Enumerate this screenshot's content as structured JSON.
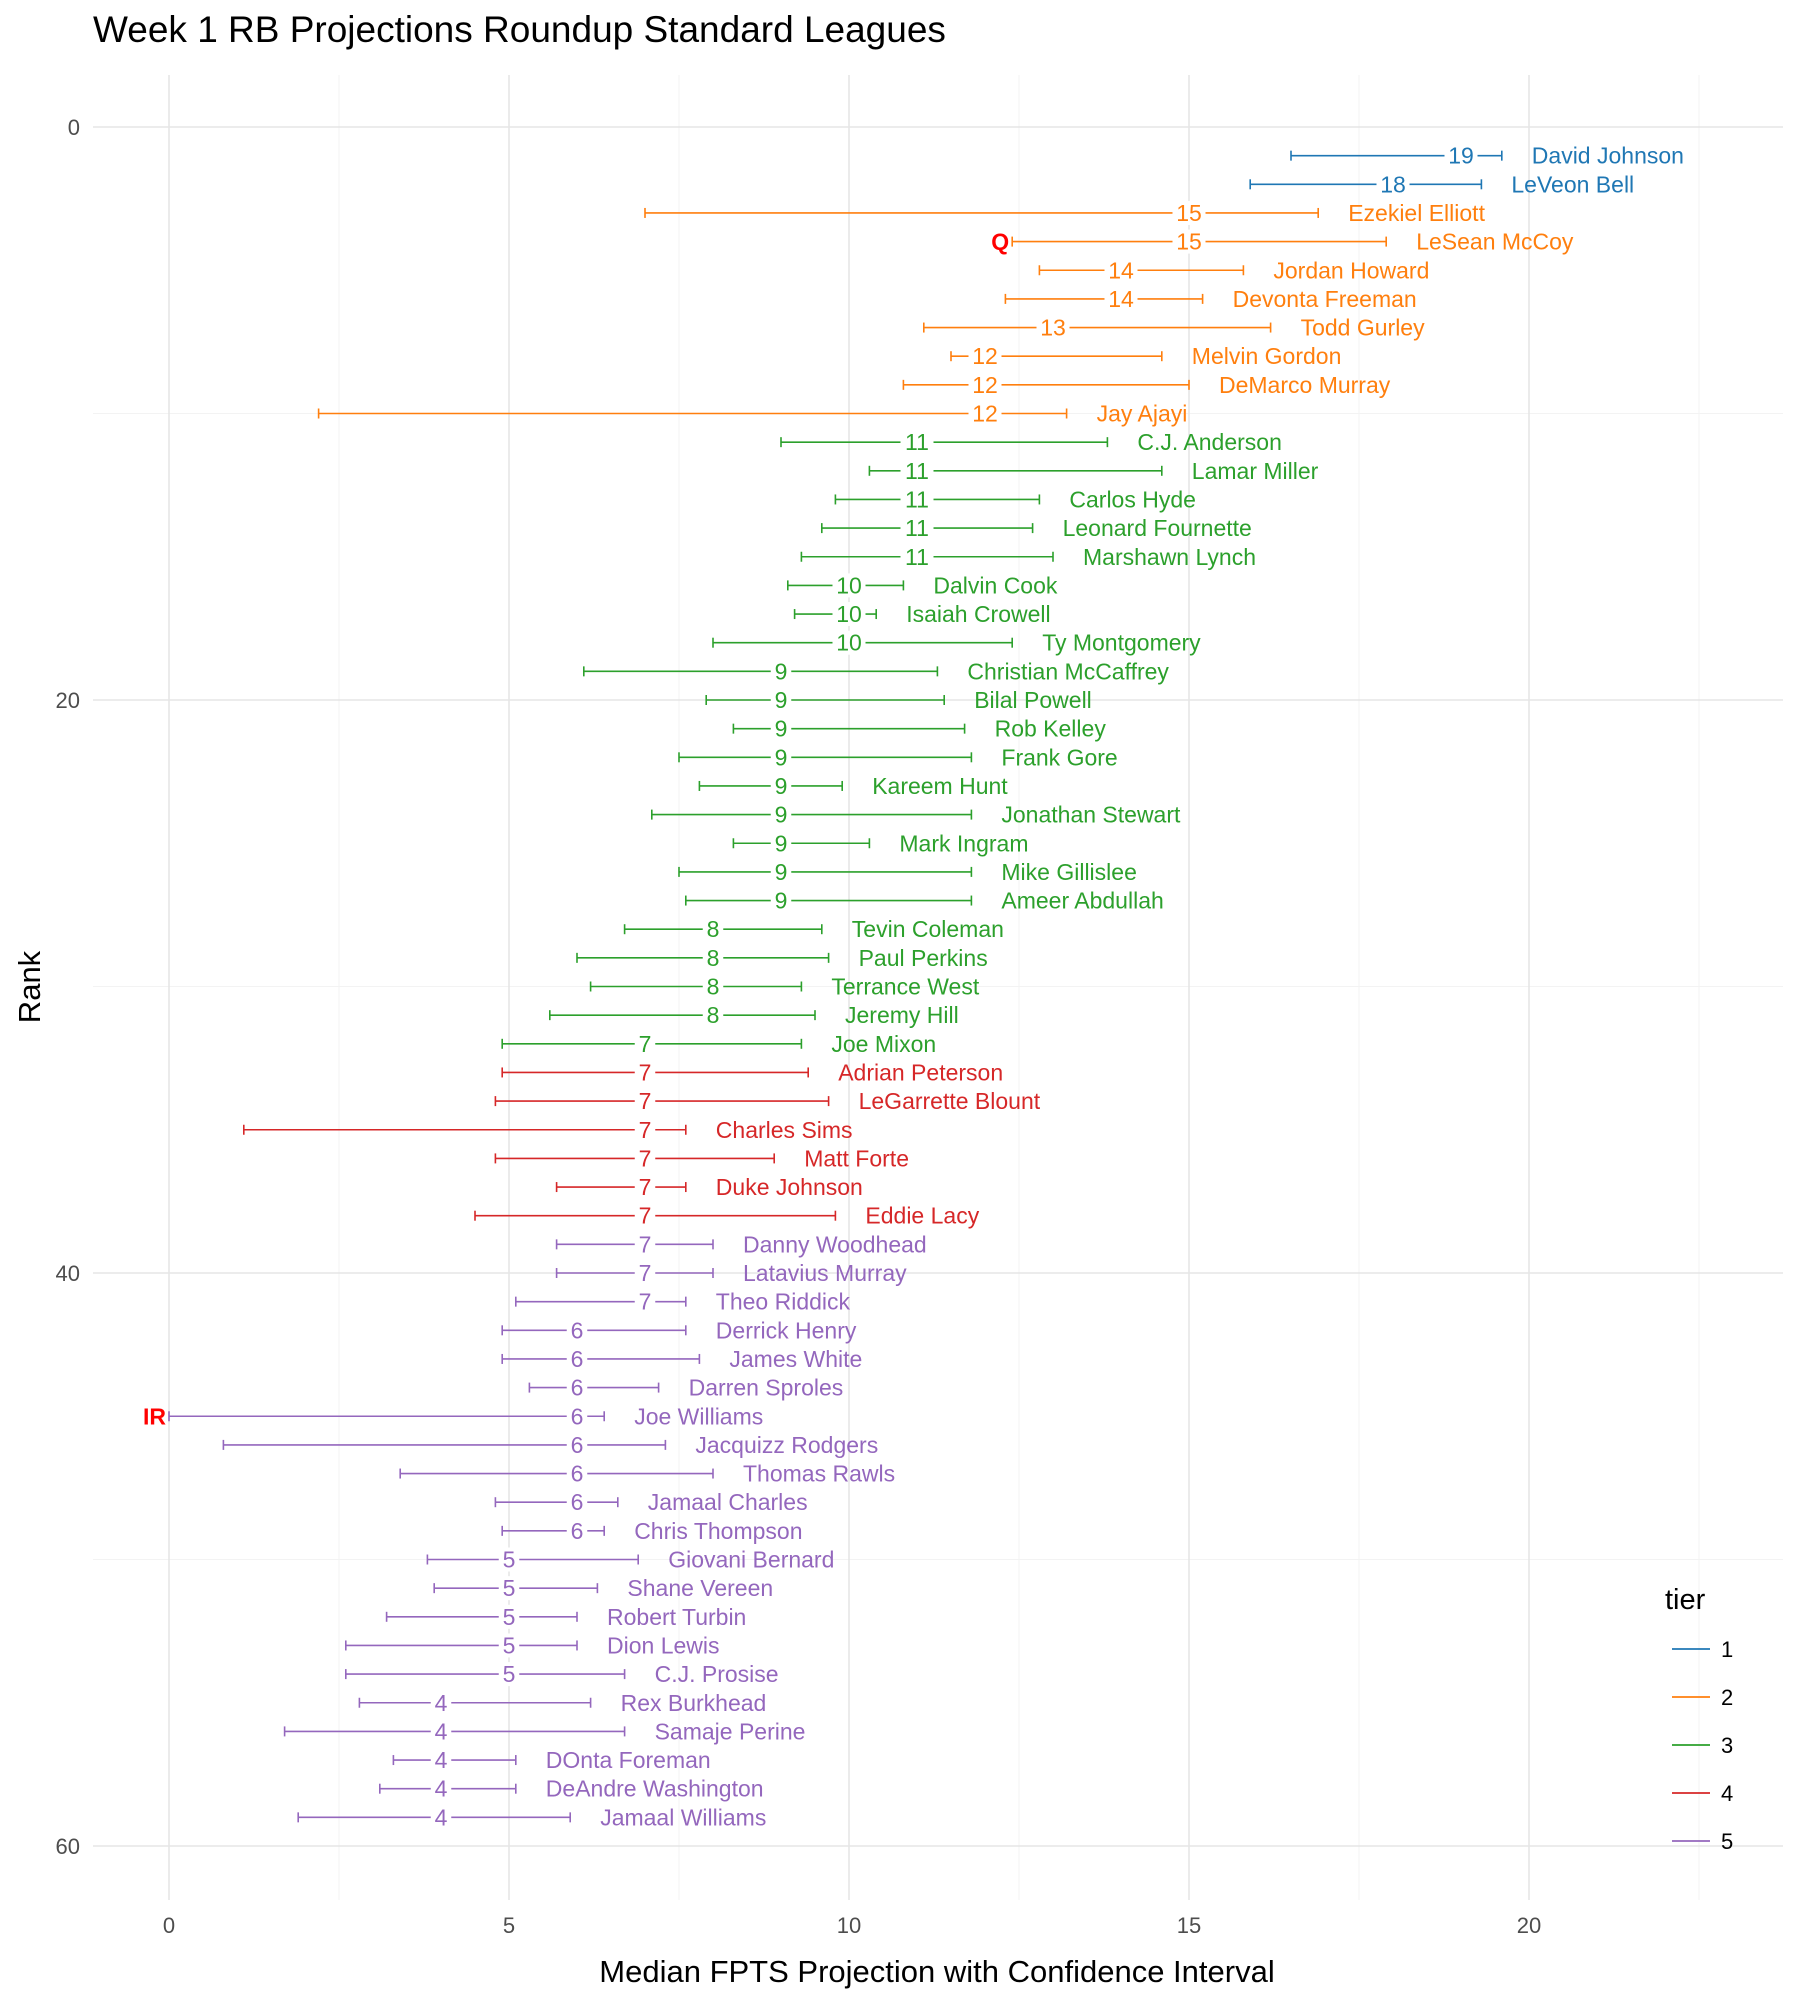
{
  "chart_data": {
    "type": "errorbar",
    "title": "Week 1 RB Projections Roundup Standard Leagues",
    "xlabel": "Median FPTS Projection with Confidence Interval",
    "ylabel": "Rank",
    "xlim": [
      -1.1,
      23.8
    ],
    "ylim": [
      -3,
      62
    ],
    "y_reversed": true,
    "x_ticks": [
      0,
      5,
      10,
      15,
      20
    ],
    "y_ticks": [
      0,
      20,
      40,
      60
    ],
    "grid": true,
    "legend": {
      "title": "tier",
      "position": "bottom-right",
      "items": [
        {
          "label": "1",
          "color": "#1f77b4"
        },
        {
          "label": "2",
          "color": "#ff7f0e"
        },
        {
          "label": "3",
          "color": "#2ca02c"
        },
        {
          "label": "4",
          "color": "#d62728"
        },
        {
          "label": "5",
          "color": "#9467bd"
        }
      ]
    },
    "tier_colors": {
      "1": "#1f77b4",
      "2": "#ff7f0e",
      "3": "#2ca02c",
      "4": "#d62728",
      "5": "#9467bd"
    },
    "points": [
      {
        "rank": 1,
        "name": "David Johnson",
        "median": 19,
        "low": 16.5,
        "high": 19.6,
        "tier": 1
      },
      {
        "rank": 2,
        "name": "LeVeon Bell",
        "median": 18,
        "low": 15.9,
        "high": 19.3,
        "tier": 1
      },
      {
        "rank": 3,
        "name": "Ezekiel Elliott",
        "median": 15,
        "low": 7.0,
        "high": 16.9,
        "tier": 2
      },
      {
        "rank": 4,
        "name": "LeSean McCoy",
        "median": 15,
        "low": 12.4,
        "high": 17.9,
        "tier": 2,
        "flag": "Q"
      },
      {
        "rank": 5,
        "name": "Jordan Howard",
        "median": 14,
        "low": 12.8,
        "high": 15.8,
        "tier": 2
      },
      {
        "rank": 6,
        "name": "Devonta Freeman",
        "median": 14,
        "low": 12.3,
        "high": 15.2,
        "tier": 2
      },
      {
        "rank": 7,
        "name": "Todd Gurley",
        "median": 13,
        "low": 11.1,
        "high": 16.2,
        "tier": 2
      },
      {
        "rank": 8,
        "name": "Melvin Gordon",
        "median": 12,
        "low": 11.5,
        "high": 14.6,
        "tier": 2
      },
      {
        "rank": 9,
        "name": "DeMarco Murray",
        "median": 12,
        "low": 10.8,
        "high": 15.0,
        "tier": 2
      },
      {
        "rank": 10,
        "name": "Jay Ajayi",
        "median": 12,
        "low": 2.2,
        "high": 13.2,
        "tier": 2
      },
      {
        "rank": 11,
        "name": "C.J. Anderson",
        "median": 11,
        "low": 9.0,
        "high": 13.8,
        "tier": 3
      },
      {
        "rank": 12,
        "name": "Lamar Miller",
        "median": 11,
        "low": 10.3,
        "high": 14.6,
        "tier": 3
      },
      {
        "rank": 13,
        "name": "Carlos Hyde",
        "median": 11,
        "low": 9.8,
        "high": 12.8,
        "tier": 3
      },
      {
        "rank": 14,
        "name": "Leonard Fournette",
        "median": 11,
        "low": 9.6,
        "high": 12.7,
        "tier": 3
      },
      {
        "rank": 15,
        "name": "Marshawn Lynch",
        "median": 11,
        "low": 9.3,
        "high": 13.0,
        "tier": 3
      },
      {
        "rank": 16,
        "name": "Dalvin Cook",
        "median": 10,
        "low": 9.1,
        "high": 10.8,
        "tier": 3
      },
      {
        "rank": 17,
        "name": "Isaiah Crowell",
        "median": 10,
        "low": 9.2,
        "high": 10.4,
        "tier": 3
      },
      {
        "rank": 18,
        "name": "Ty Montgomery",
        "median": 10,
        "low": 8.0,
        "high": 12.4,
        "tier": 3
      },
      {
        "rank": 19,
        "name": "Christian McCaffrey",
        "median": 9,
        "low": 6.1,
        "high": 11.3,
        "tier": 3
      },
      {
        "rank": 20,
        "name": "Bilal Powell",
        "median": 9,
        "low": 7.9,
        "high": 11.4,
        "tier": 3
      },
      {
        "rank": 21,
        "name": "Rob Kelley",
        "median": 9,
        "low": 8.3,
        "high": 11.7,
        "tier": 3
      },
      {
        "rank": 22,
        "name": "Frank Gore",
        "median": 9,
        "low": 7.5,
        "high": 11.8,
        "tier": 3
      },
      {
        "rank": 23,
        "name": "Kareem Hunt",
        "median": 9,
        "low": 7.8,
        "high": 9.9,
        "tier": 3
      },
      {
        "rank": 24,
        "name": "Jonathan Stewart",
        "median": 9,
        "low": 7.1,
        "high": 11.8,
        "tier": 3
      },
      {
        "rank": 25,
        "name": "Mark Ingram",
        "median": 9,
        "low": 8.3,
        "high": 10.3,
        "tier": 3
      },
      {
        "rank": 26,
        "name": "Mike Gillislee",
        "median": 9,
        "low": 7.5,
        "high": 11.8,
        "tier": 3
      },
      {
        "rank": 27,
        "name": "Ameer Abdullah",
        "median": 9,
        "low": 7.6,
        "high": 11.8,
        "tier": 3
      },
      {
        "rank": 28,
        "name": "Tevin Coleman",
        "median": 8,
        "low": 6.7,
        "high": 9.6,
        "tier": 3
      },
      {
        "rank": 29,
        "name": "Paul Perkins",
        "median": 8,
        "low": 6.0,
        "high": 9.7,
        "tier": 3
      },
      {
        "rank": 30,
        "name": "Terrance West",
        "median": 8,
        "low": 6.2,
        "high": 9.3,
        "tier": 3
      },
      {
        "rank": 31,
        "name": "Jeremy Hill",
        "median": 8,
        "low": 5.6,
        "high": 9.5,
        "tier": 3
      },
      {
        "rank": 32,
        "name": "Joe Mixon",
        "median": 7,
        "low": 4.9,
        "high": 9.3,
        "tier": 3
      },
      {
        "rank": 33,
        "name": "Adrian Peterson",
        "median": 7,
        "low": 4.9,
        "high": 9.4,
        "tier": 4
      },
      {
        "rank": 34,
        "name": "LeGarrette Blount",
        "median": 7,
        "low": 4.8,
        "high": 9.7,
        "tier": 4
      },
      {
        "rank": 35,
        "name": "Charles Sims",
        "median": 7,
        "low": 1.1,
        "high": 7.6,
        "tier": 4
      },
      {
        "rank": 36,
        "name": "Matt Forte",
        "median": 7,
        "low": 4.8,
        "high": 8.9,
        "tier": 4
      },
      {
        "rank": 37,
        "name": "Duke Johnson",
        "median": 7,
        "low": 5.7,
        "high": 7.6,
        "tier": 4
      },
      {
        "rank": 38,
        "name": "Eddie Lacy",
        "median": 7,
        "low": 4.5,
        "high": 9.8,
        "tier": 4
      },
      {
        "rank": 39,
        "name": "Danny Woodhead",
        "median": 7,
        "low": 5.7,
        "high": 8.0,
        "tier": 5
      },
      {
        "rank": 40,
        "name": "Latavius Murray",
        "median": 7,
        "low": 5.7,
        "high": 8.0,
        "tier": 5
      },
      {
        "rank": 41,
        "name": "Theo Riddick",
        "median": 7,
        "low": 5.1,
        "high": 7.6,
        "tier": 5
      },
      {
        "rank": 42,
        "name": "Derrick Henry",
        "median": 6,
        "low": 4.9,
        "high": 7.6,
        "tier": 5
      },
      {
        "rank": 43,
        "name": "James White",
        "median": 6,
        "low": 4.9,
        "high": 7.8,
        "tier": 5
      },
      {
        "rank": 44,
        "name": "Darren Sproles",
        "median": 6,
        "low": 5.3,
        "high": 7.2,
        "tier": 5
      },
      {
        "rank": 45,
        "name": "Joe Williams",
        "median": 6,
        "low": 0.0,
        "high": 6.4,
        "tier": 5,
        "flag": "IR"
      },
      {
        "rank": 46,
        "name": "Jacquizz Rodgers",
        "median": 6,
        "low": 0.8,
        "high": 7.3,
        "tier": 5
      },
      {
        "rank": 47,
        "name": "Thomas Rawls",
        "median": 6,
        "low": 3.4,
        "high": 8.0,
        "tier": 5
      },
      {
        "rank": 48,
        "name": "Jamaal Charles",
        "median": 6,
        "low": 4.8,
        "high": 6.6,
        "tier": 5
      },
      {
        "rank": 49,
        "name": "Chris Thompson",
        "median": 6,
        "low": 4.9,
        "high": 6.4,
        "tier": 5
      },
      {
        "rank": 50,
        "name": "Giovani Bernard",
        "median": 5,
        "low": 3.8,
        "high": 6.9,
        "tier": 5
      },
      {
        "rank": 51,
        "name": "Shane Vereen",
        "median": 5,
        "low": 3.9,
        "high": 6.3,
        "tier": 5
      },
      {
        "rank": 52,
        "name": "Robert Turbin",
        "median": 5,
        "low": 3.2,
        "high": 6.0,
        "tier": 5
      },
      {
        "rank": 53,
        "name": "Dion Lewis",
        "median": 5,
        "low": 2.6,
        "high": 6.0,
        "tier": 5
      },
      {
        "rank": 54,
        "name": "C.J. Prosise",
        "median": 5,
        "low": 2.6,
        "high": 6.7,
        "tier": 5
      },
      {
        "rank": 55,
        "name": "Rex Burkhead",
        "median": 4,
        "low": 2.8,
        "high": 6.2,
        "tier": 5
      },
      {
        "rank": 56,
        "name": "Samaje Perine",
        "median": 4,
        "low": 1.7,
        "high": 6.7,
        "tier": 5
      },
      {
        "rank": 57,
        "name": "DOnta Foreman",
        "median": 4,
        "low": 3.3,
        "high": 5.1,
        "tier": 5
      },
      {
        "rank": 58,
        "name": "DeAndre Washington",
        "median": 4,
        "low": 3.1,
        "high": 5.1,
        "tier": 5
      },
      {
        "rank": 59,
        "name": "Jamaal Williams",
        "median": 4,
        "low": 1.9,
        "high": 5.9,
        "tier": 5
      }
    ]
  }
}
